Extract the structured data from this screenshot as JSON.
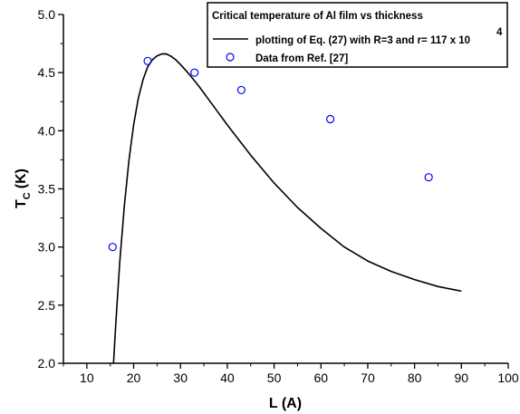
{
  "chart_data": {
    "type": "line",
    "title": "Critical temperature of Al film vs thickness",
    "xlabel": "L (A)",
    "ylabel": "T",
    "ylabel_sub": "C",
    "ylabel_unit": "(K)",
    "xlim": [
      5,
      100
    ],
    "ylim": [
      2.0,
      5.0
    ],
    "xticks": [
      10,
      20,
      30,
      40,
      50,
      60,
      70,
      80,
      90,
      100
    ],
    "yticks": [
      "2.0",
      "2.5",
      "3.0",
      "3.5",
      "4.0",
      "4.5",
      "5.0"
    ],
    "grid": false,
    "legend_position": "top-right",
    "series": [
      {
        "name": "plotting of  Eq. (27) with R=3 and r= 117 x 10",
        "name_superscript": "4",
        "kind": "line",
        "color": "#000000",
        "x": [
          15.7,
          16.2,
          17,
          18,
          19,
          20,
          21,
          22,
          23,
          24,
          25,
          26,
          26.5,
          27,
          28,
          29,
          30,
          32,
          34,
          36,
          38,
          40,
          45,
          50,
          55,
          60,
          65,
          70,
          75,
          80,
          85,
          90
        ],
        "y": [
          2.0,
          2.35,
          2.85,
          3.35,
          3.75,
          4.05,
          4.28,
          4.44,
          4.55,
          4.61,
          4.645,
          4.66,
          4.662,
          4.66,
          4.64,
          4.61,
          4.57,
          4.48,
          4.38,
          4.27,
          4.16,
          4.05,
          3.79,
          3.55,
          3.34,
          3.16,
          3.0,
          2.88,
          2.79,
          2.72,
          2.66,
          2.62
        ]
      },
      {
        "name": "Data from Ref. [27]",
        "kind": "scatter",
        "color": "#0000ff",
        "x": [
          15.5,
          23,
          33,
          43,
          62,
          83
        ],
        "y": [
          3.0,
          4.6,
          4.5,
          4.35,
          4.1,
          3.6
        ]
      }
    ]
  }
}
